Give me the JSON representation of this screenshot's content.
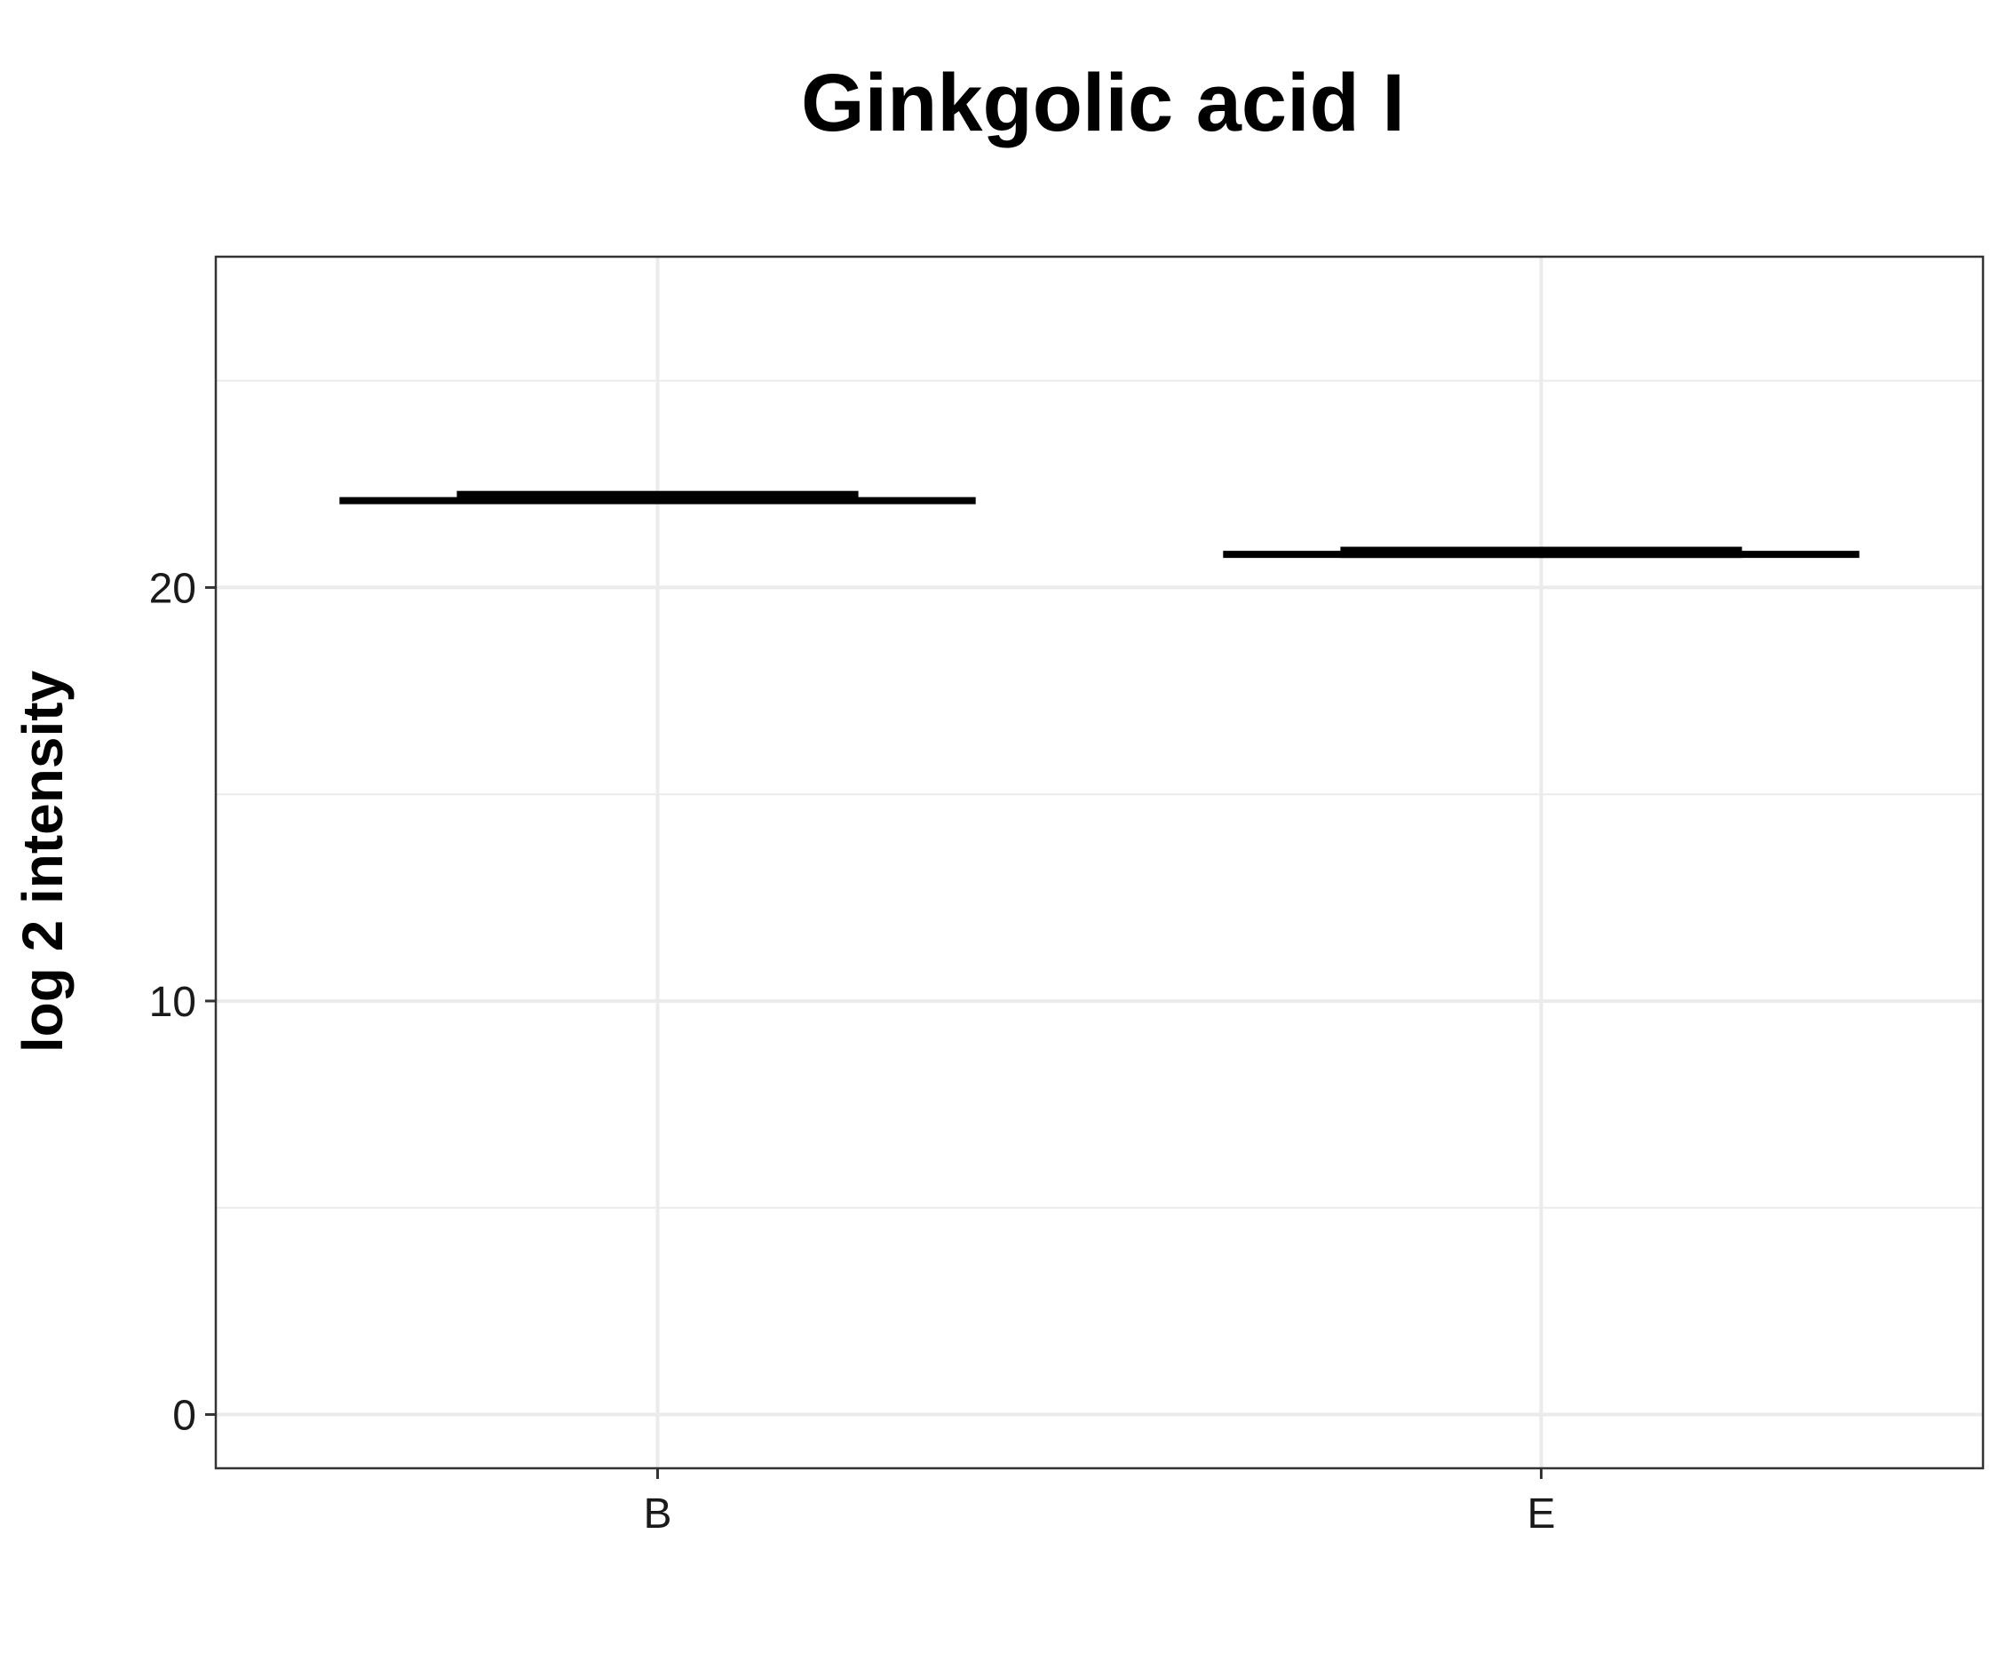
{
  "chart_data": {
    "type": "boxplot",
    "title": "Ginkgolic acid I",
    "xlabel": "",
    "ylabel": "log 2 intensity",
    "categories": [
      "B",
      "E"
    ],
    "groups": [
      {
        "category": "B",
        "min": 22.1,
        "q1": 22.15,
        "median": 22.2,
        "q3": 22.25,
        "max": 22.3
      },
      {
        "category": "E",
        "min": 20.8,
        "q1": 20.8,
        "median": 20.85,
        "q3": 20.9,
        "max": 20.9
      }
    ],
    "ylim": [
      -1.3,
      28
    ],
    "yticks": [
      0,
      10,
      20
    ],
    "y_minor_gridlines": [
      5,
      15,
      25
    ],
    "grid": true,
    "legend": "none",
    "colors": {
      "box_line": "#000000",
      "grid": "#ebebeb",
      "panel_border": "#333333",
      "background": "#ffffff"
    }
  }
}
